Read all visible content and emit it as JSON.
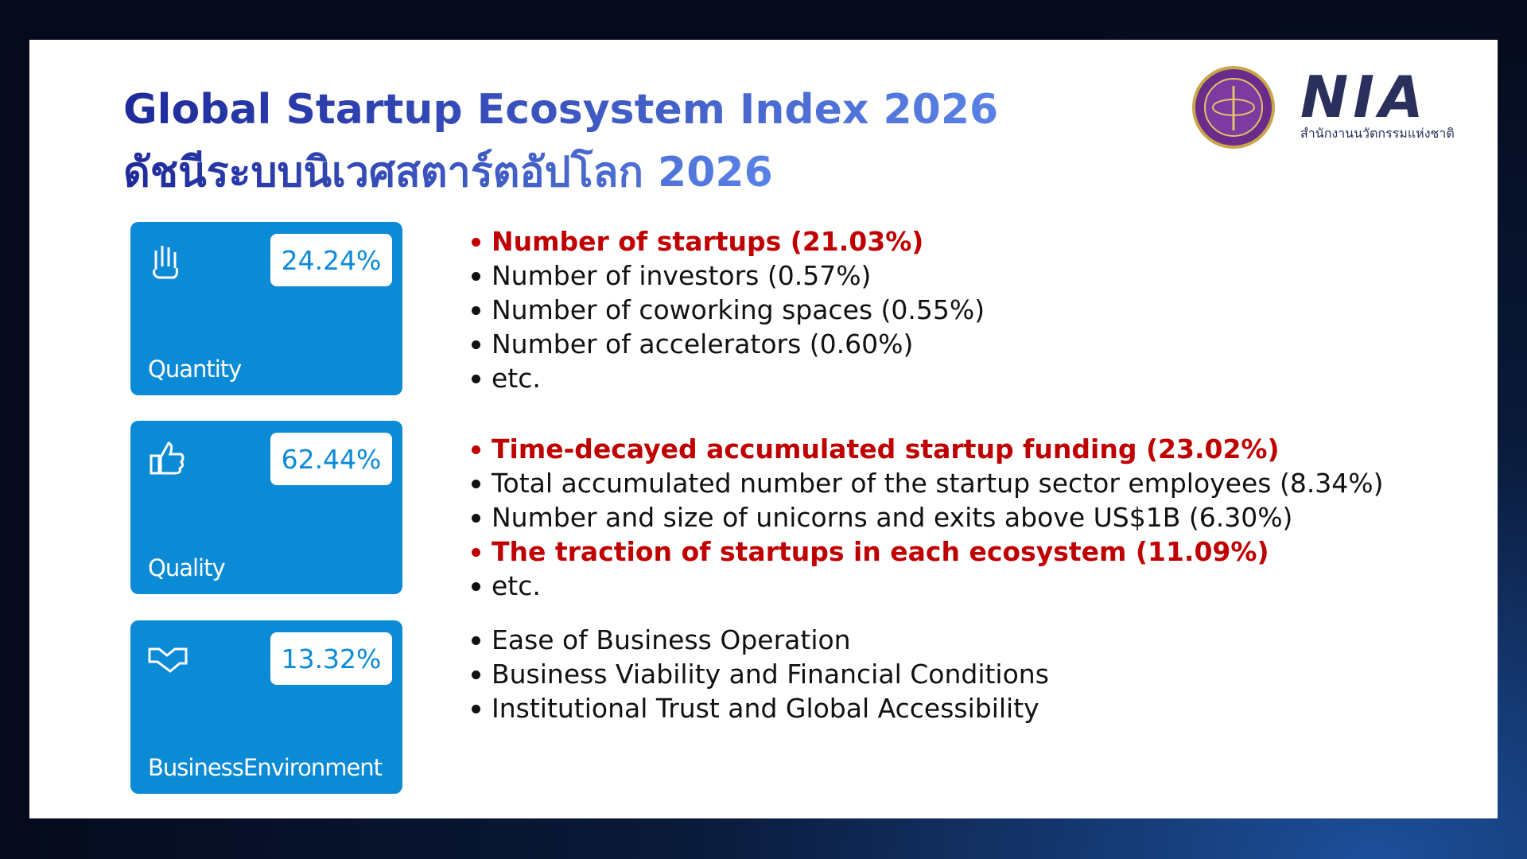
{
  "header": {
    "title": "Global Startup Ecosystem Index 2026",
    "subtitle": "ดัชนีระบบนิเวศสตาร์ตอัปโลก 2026"
  },
  "logo": {
    "name": "NIA",
    "org": "สำนักงานนวัตกรรมแห่งชาติ"
  },
  "sections": [
    {
      "percent": "24.24%",
      "label": "Quantity",
      "items": [
        {
          "text": "Number of startups (21.03%)",
          "highlight": true
        },
        {
          "text": "Number of investors (0.57%)",
          "highlight": false
        },
        {
          "text": "Number of coworking spaces (0.55%)",
          "highlight": false
        },
        {
          "text": "Number of accelerators (0.60%)",
          "highlight": false
        },
        {
          "text": "etc.",
          "highlight": false
        }
      ]
    },
    {
      "percent": "62.44%",
      "label": "Quality",
      "items": [
        {
          "text": "Time-decayed accumulated startup funding (23.02%)",
          "highlight": true
        },
        {
          "text": "Total accumulated number of the startup sector employees (8.34%)",
          "highlight": false
        },
        {
          "text": "Number and size of unicorns and exits above US$1B (6.30%)",
          "highlight": false
        },
        {
          "text": "The traction of startups in each ecosystem (11.09%)",
          "highlight": true
        },
        {
          "text": "etc.",
          "highlight": false
        }
      ]
    },
    {
      "percent": "13.32%",
      "label": "BusinessEnvironment",
      "items": [
        {
          "text": "Ease of Business Operation",
          "highlight": false
        },
        {
          "text": "Business Viability and Financial Conditions",
          "highlight": false
        },
        {
          "text": "Institutional Trust and Global Accessibility",
          "highlight": false
        }
      ]
    }
  ]
}
